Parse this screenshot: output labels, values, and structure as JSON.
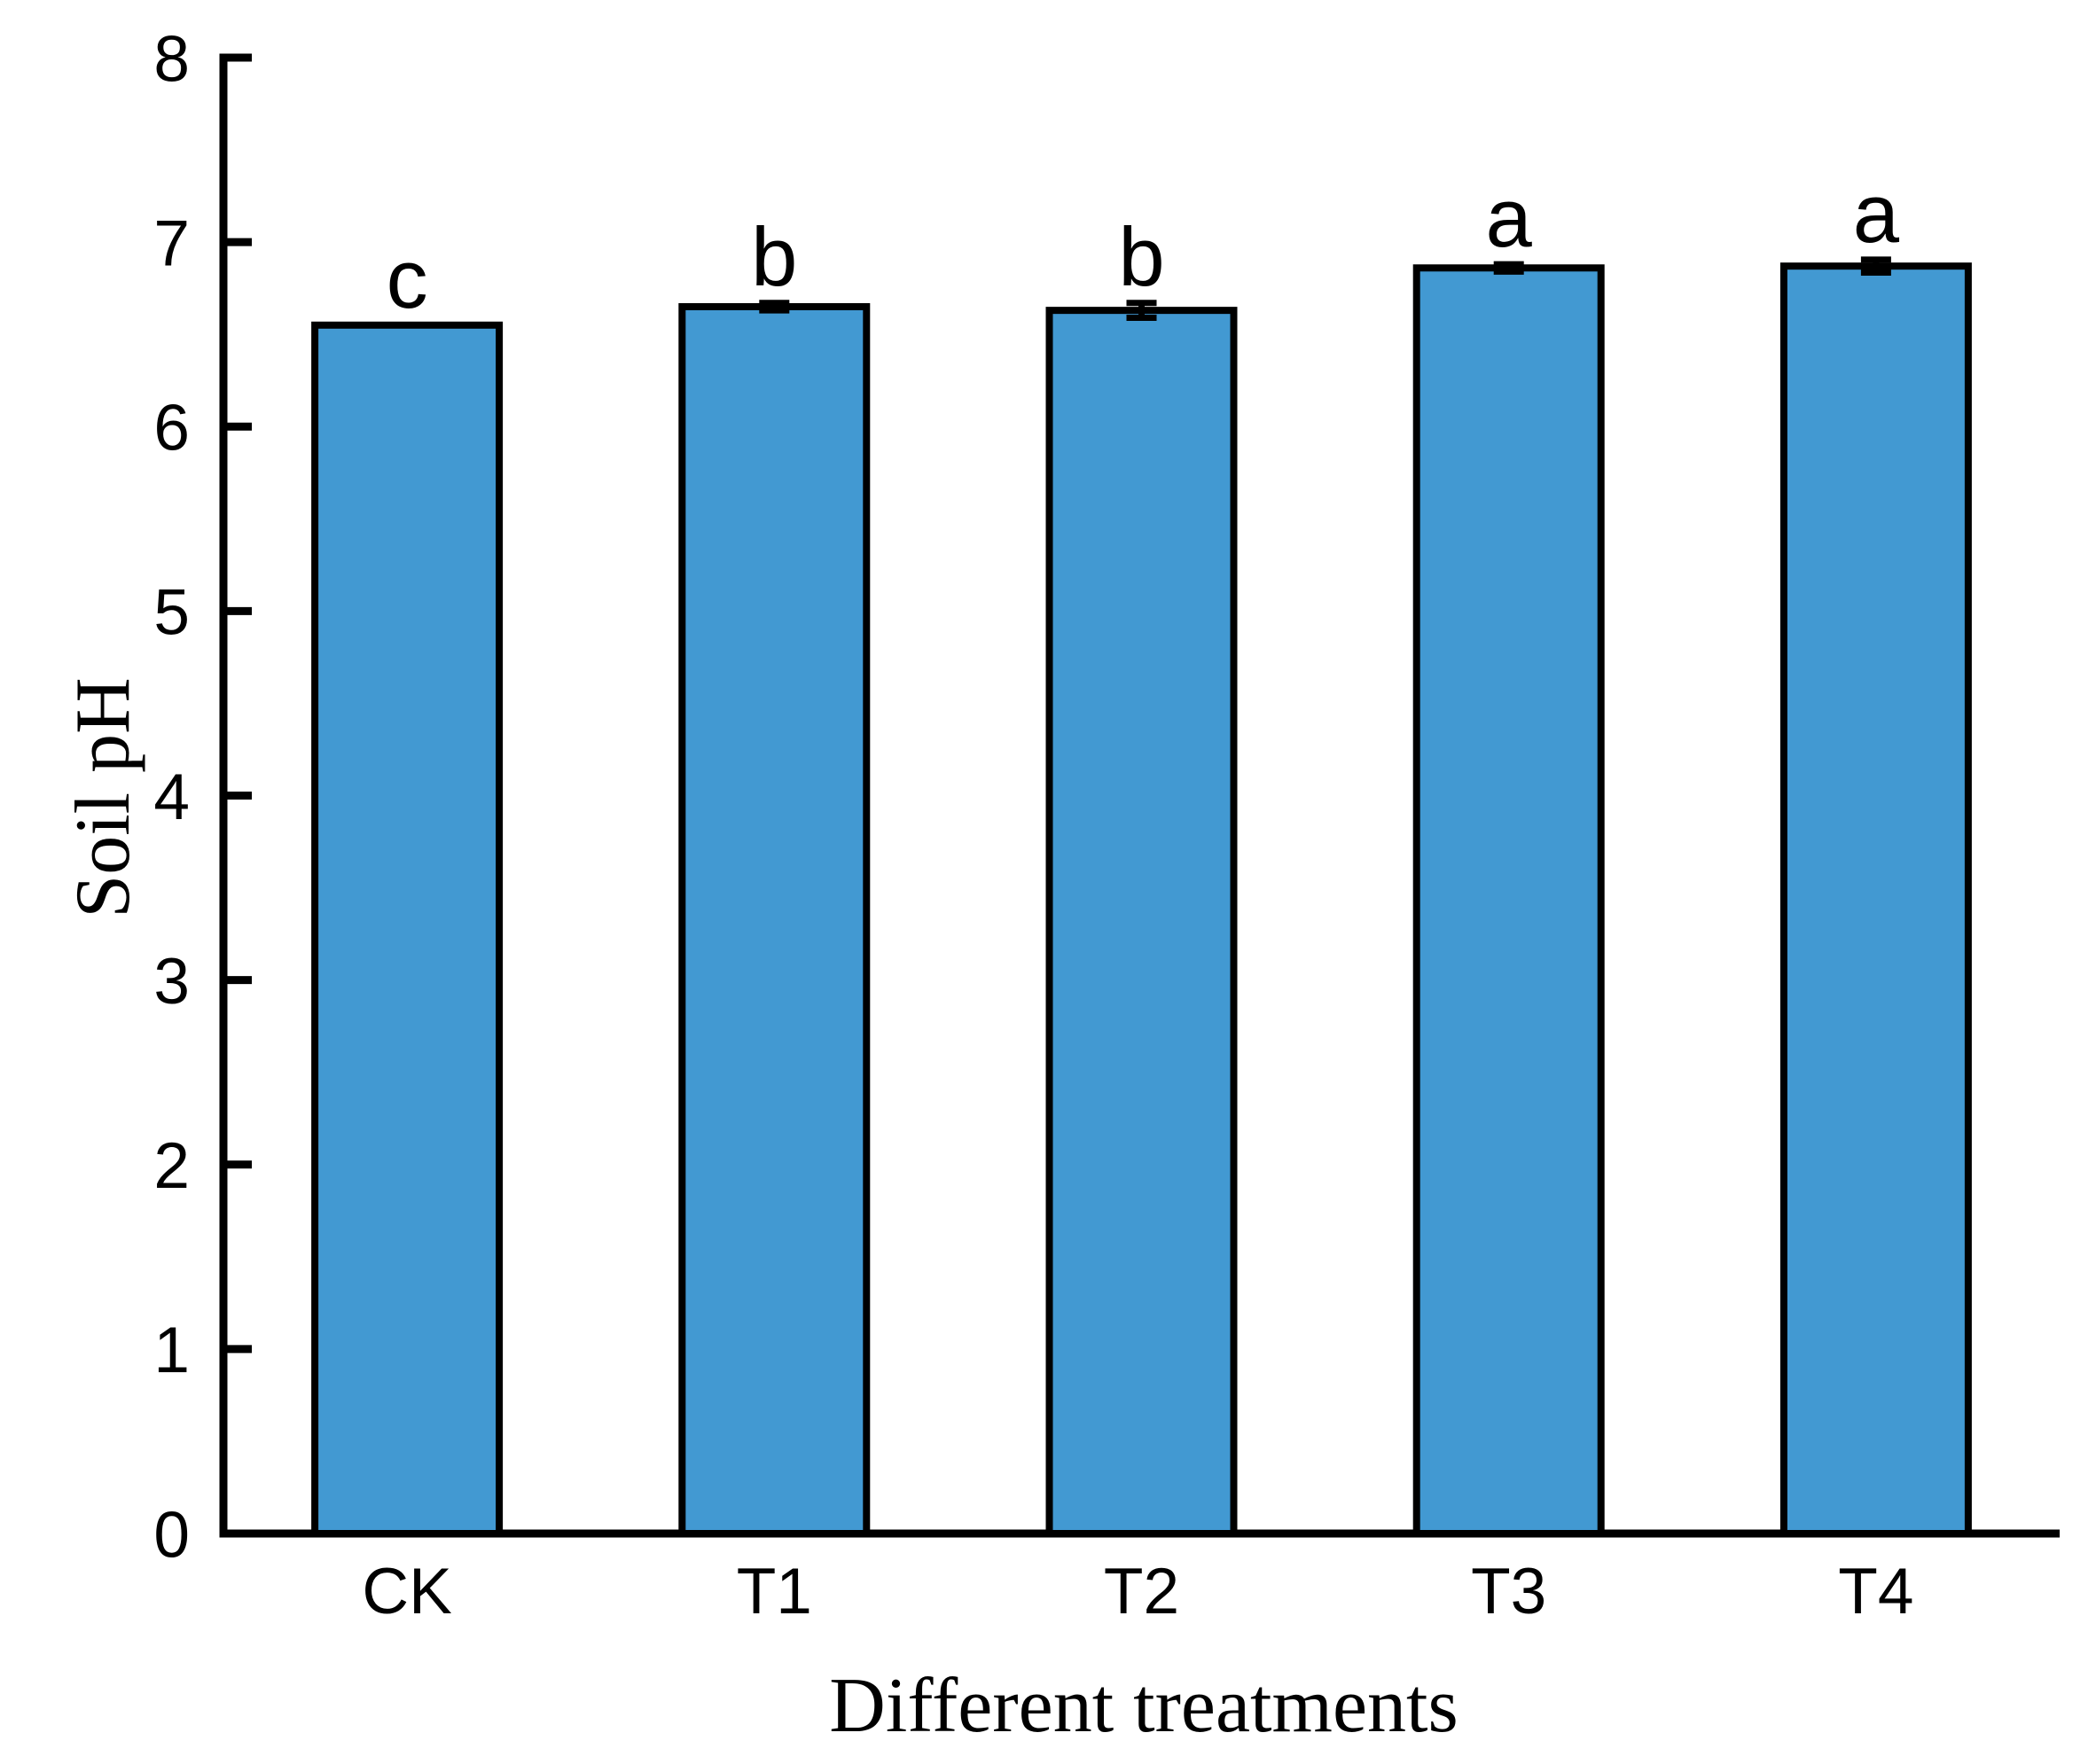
{
  "figure": {
    "background": "#ffffff"
  },
  "chart_data": {
    "type": "bar",
    "title": "",
    "xlabel": "Different treatments",
    "ylabel": "Soil pH",
    "categories": [
      "CK",
      "T1",
      "T2",
      "T3",
      "T4"
    ],
    "values": [
      6.55,
      6.65,
      6.63,
      6.86,
      6.87
    ],
    "errors": [
      0,
      0.02,
      0.04,
      0.02,
      0.035
    ],
    "sig_letters": [
      "c",
      "b",
      "b",
      "a",
      "a"
    ],
    "ylim": [
      0,
      8
    ],
    "yticks": [
      0,
      1,
      2,
      3,
      4,
      5,
      6,
      7,
      8
    ],
    "grid": false,
    "legend": "none",
    "bar_color": "#4299D2",
    "bar_edge_color": "#000000",
    "axis_color": "#000000"
  }
}
